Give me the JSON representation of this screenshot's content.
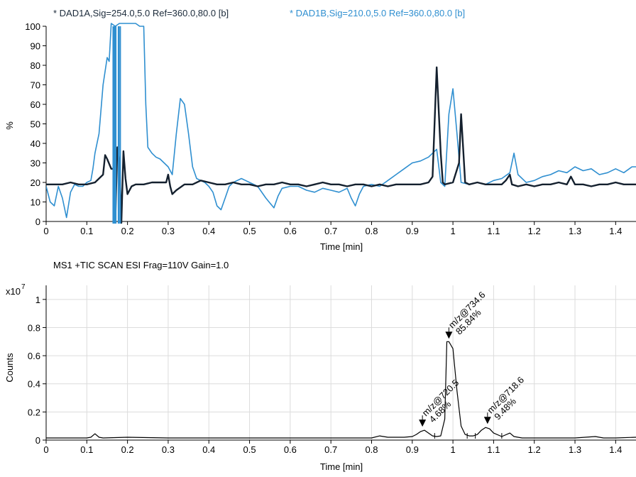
{
  "chart_data": [
    {
      "type": "line",
      "header": [
        {
          "text": "* DAD1A,Sig=254.0,5.0  Ref=360.0,80.0 [b]",
          "color": "#1b2a3a"
        },
        {
          "text": "* DAD1B,Sig=210.0,5.0  Ref=360.0,80.0 [b]",
          "color": "#2f8fd0"
        }
      ],
      "xlabel": "Time [min]",
      "ylabel": "%",
      "xlim": [
        0,
        1.45
      ],
      "ylim": [
        0,
        100
      ],
      "x_ticks": [
        0,
        0.1,
        0.2,
        0.3,
        0.4,
        0.5,
        0.6,
        0.7,
        0.8,
        0.9,
        1,
        1.1,
        1.2,
        1.3,
        1.4
      ],
      "x_tick_labels": [
        "0",
        "0.1",
        "0.2",
        "0.3",
        "0.4",
        "0.5",
        "0.6",
        "0.7",
        "0.8",
        "0.9",
        "1",
        "1.1",
        "1.2",
        "1.3",
        "1.4"
      ],
      "y_ticks": [
        0,
        10,
        20,
        30,
        40,
        50,
        60,
        70,
        80,
        90,
        100
      ],
      "y_tick_labels": [
        "0",
        "10",
        "20",
        "30",
        "40",
        "50",
        "60",
        "70",
        "80",
        "90",
        "100"
      ],
      "grid": false,
      "series": [
        {
          "color": "#2f8fd0",
          "points": [
            [
              0,
              18
            ],
            [
              0.01,
              10
            ],
            [
              0.02,
              8
            ],
            [
              0.03,
              18
            ],
            [
              0.04,
              12
            ],
            [
              0.05,
              2
            ],
            [
              0.06,
              15
            ],
            [
              0.07,
              19
            ],
            [
              0.08,
              18
            ],
            [
              0.09,
              18
            ],
            [
              0.1,
              20
            ],
            [
              0.11,
              21
            ],
            [
              0.115,
              27
            ],
            [
              0.12,
              35
            ],
            [
              0.13,
              45
            ],
            [
              0.14,
              70
            ],
            [
              0.15,
              84
            ],
            [
              0.155,
              82
            ],
            [
              0.16,
              105
            ],
            [
              0.17,
              100
            ],
            [
              0.18,
              105
            ],
            [
              0.19,
              105
            ],
            [
              0.2,
              105
            ],
            [
              0.21,
              105
            ],
            [
              0.22,
              105
            ],
            [
              0.23,
              100
            ],
            [
              0.24,
              100
            ],
            [
              0.245,
              60
            ],
            [
              0.25,
              38
            ],
            [
              0.26,
              35
            ],
            [
              0.27,
              33
            ],
            [
              0.28,
              32
            ],
            [
              0.29,
              30
            ],
            [
              0.3,
              28
            ],
            [
              0.31,
              24
            ],
            [
              0.32,
              45
            ],
            [
              0.33,
              63
            ],
            [
              0.34,
              60
            ],
            [
              0.35,
              45
            ],
            [
              0.36,
              28
            ],
            [
              0.37,
              22
            ],
            [
              0.38,
              21
            ],
            [
              0.39,
              20
            ],
            [
              0.4,
              18
            ],
            [
              0.41,
              15
            ],
            [
              0.42,
              8
            ],
            [
              0.43,
              6
            ],
            [
              0.44,
              12
            ],
            [
              0.45,
              18
            ],
            [
              0.46,
              20
            ],
            [
              0.48,
              22
            ],
            [
              0.5,
              20
            ],
            [
              0.52,
              18
            ],
            [
              0.54,
              12
            ],
            [
              0.56,
              7
            ],
            [
              0.57,
              13
            ],
            [
              0.58,
              17
            ],
            [
              0.6,
              18
            ],
            [
              0.62,
              18
            ],
            [
              0.64,
              16
            ],
            [
              0.66,
              15
            ],
            [
              0.68,
              17
            ],
            [
              0.7,
              16
            ],
            [
              0.72,
              15
            ],
            [
              0.74,
              17
            ],
            [
              0.75,
              12
            ],
            [
              0.76,
              8
            ],
            [
              0.77,
              14
            ],
            [
              0.78,
              18
            ],
            [
              0.8,
              19
            ],
            [
              0.82,
              18
            ],
            [
              0.84,
              21
            ],
            [
              0.86,
              24
            ],
            [
              0.88,
              27
            ],
            [
              0.9,
              30
            ],
            [
              0.92,
              31
            ],
            [
              0.94,
              33
            ],
            [
              0.96,
              37
            ],
            [
              0.97,
              20
            ],
            [
              0.98,
              18
            ],
            [
              0.99,
              55
            ],
            [
              1.0,
              68
            ],
            [
              1.01,
              45
            ],
            [
              1.02,
              20
            ],
            [
              1.04,
              19
            ],
            [
              1.06,
              20
            ],
            [
              1.08,
              19
            ],
            [
              1.1,
              21
            ],
            [
              1.12,
              22
            ],
            [
              1.14,
              25
            ],
            [
              1.15,
              35
            ],
            [
              1.16,
              24
            ],
            [
              1.18,
              20
            ],
            [
              1.2,
              21
            ],
            [
              1.22,
              23
            ],
            [
              1.24,
              24
            ],
            [
              1.26,
              26
            ],
            [
              1.28,
              25
            ],
            [
              1.3,
              28
            ],
            [
              1.32,
              26
            ],
            [
              1.34,
              27
            ],
            [
              1.36,
              24
            ],
            [
              1.38,
              25
            ],
            [
              1.4,
              27
            ],
            [
              1.42,
              25
            ],
            [
              1.44,
              28
            ],
            [
              1.45,
              28
            ]
          ]
        },
        {
          "color": "#14202e",
          "points": [
            [
              0,
              19
            ],
            [
              0.02,
              19
            ],
            [
              0.04,
              19
            ],
            [
              0.06,
              20
            ],
            [
              0.08,
              19
            ],
            [
              0.1,
              19
            ],
            [
              0.12,
              20
            ],
            [
              0.14,
              24
            ],
            [
              0.145,
              34
            ],
            [
              0.15,
              32
            ],
            [
              0.16,
              27
            ],
            [
              0.165,
              27
            ],
            [
              0.17,
              0
            ],
            [
              0.175,
              38
            ],
            [
              0.18,
              30
            ],
            [
              0.185,
              -2
            ],
            [
              0.19,
              36
            ],
            [
              0.195,
              22
            ],
            [
              0.2,
              14
            ],
            [
              0.21,
              18
            ],
            [
              0.22,
              19
            ],
            [
              0.24,
              19
            ],
            [
              0.26,
              20
            ],
            [
              0.28,
              20
            ],
            [
              0.295,
              20
            ],
            [
              0.3,
              24
            ],
            [
              0.305,
              18
            ],
            [
              0.31,
              14
            ],
            [
              0.32,
              16
            ],
            [
              0.34,
              19
            ],
            [
              0.36,
              19
            ],
            [
              0.38,
              21
            ],
            [
              0.4,
              20
            ],
            [
              0.42,
              19
            ],
            [
              0.44,
              19
            ],
            [
              0.46,
              20
            ],
            [
              0.48,
              19
            ],
            [
              0.5,
              19
            ],
            [
              0.52,
              18
            ],
            [
              0.54,
              19
            ],
            [
              0.56,
              19
            ],
            [
              0.58,
              20
            ],
            [
              0.6,
              19
            ],
            [
              0.62,
              19
            ],
            [
              0.64,
              18
            ],
            [
              0.66,
              19
            ],
            [
              0.68,
              20
            ],
            [
              0.7,
              19
            ],
            [
              0.72,
              19
            ],
            [
              0.74,
              18
            ],
            [
              0.76,
              19
            ],
            [
              0.78,
              19
            ],
            [
              0.8,
              18
            ],
            [
              0.82,
              19
            ],
            [
              0.84,
              18
            ],
            [
              0.86,
              19
            ],
            [
              0.88,
              19
            ],
            [
              0.9,
              19
            ],
            [
              0.92,
              19
            ],
            [
              0.94,
              20
            ],
            [
              0.95,
              23
            ],
            [
              0.96,
              79
            ],
            [
              0.97,
              35
            ],
            [
              0.975,
              20
            ],
            [
              0.98,
              19
            ],
            [
              1.0,
              20
            ],
            [
              1.015,
              30
            ],
            [
              1.02,
              55
            ],
            [
              1.025,
              38
            ],
            [
              1.03,
              20
            ],
            [
              1.04,
              19
            ],
            [
              1.06,
              20
            ],
            [
              1.08,
              19
            ],
            [
              1.1,
              19
            ],
            [
              1.12,
              19
            ],
            [
              1.13,
              21
            ],
            [
              1.14,
              24
            ],
            [
              1.145,
              19
            ],
            [
              1.16,
              18
            ],
            [
              1.18,
              19
            ],
            [
              1.2,
              18
            ],
            [
              1.22,
              19
            ],
            [
              1.24,
              19
            ],
            [
              1.26,
              20
            ],
            [
              1.28,
              19
            ],
            [
              1.29,
              23
            ],
            [
              1.3,
              19
            ],
            [
              1.32,
              19
            ],
            [
              1.34,
              18
            ],
            [
              1.36,
              19
            ],
            [
              1.38,
              19
            ],
            [
              1.4,
              20
            ],
            [
              1.42,
              19
            ],
            [
              1.44,
              19
            ],
            [
              1.45,
              19
            ]
          ]
        }
      ],
      "spikes_x": [
        0.165,
        0.168,
        0.171,
        0.178,
        0.182
      ]
    },
    {
      "type": "line",
      "title": "MS1 +TIC SCAN ESI Frag=110V Gain=1.0",
      "xlabel": "Time [min]",
      "ylabel": "Counts",
      "y_multiplier_base": "x10",
      "y_multiplier_exp": "7",
      "xlim": [
        0,
        1.45
      ],
      "ylim": [
        0,
        1.1
      ],
      "x_ticks": [
        0,
        0.1,
        0.2,
        0.3,
        0.4,
        0.5,
        0.6,
        0.7,
        0.8,
        0.9,
        1,
        1.1,
        1.2,
        1.3,
        1.4
      ],
      "x_tick_labels": [
        "0",
        "0.1",
        "0.2",
        "0.3",
        "0.4",
        "0.5",
        "0.6",
        "0.7",
        "0.8",
        "0.9",
        "1",
        "1.1",
        "1.2",
        "1.3",
        "1.4"
      ],
      "y_ticks": [
        0,
        0.2,
        0.4,
        0.6,
        0.8,
        1
      ],
      "y_tick_labels": [
        "0",
        "0.2",
        "0.4",
        "0.6",
        "0.8",
        "1"
      ],
      "grid": true,
      "series": [
        {
          "color": "#000000",
          "points": [
            [
              0,
              0.015
            ],
            [
              0.1,
              0.015
            ],
            [
              0.11,
              0.02
            ],
            [
              0.12,
              0.045
            ],
            [
              0.13,
              0.02
            ],
            [
              0.14,
              0.015
            ],
            [
              0.2,
              0.02
            ],
            [
              0.3,
              0.015
            ],
            [
              0.4,
              0.015
            ],
            [
              0.5,
              0.015
            ],
            [
              0.6,
              0.015
            ],
            [
              0.7,
              0.015
            ],
            [
              0.8,
              0.015
            ],
            [
              0.82,
              0.03
            ],
            [
              0.84,
              0.02
            ],
            [
              0.88,
              0.02
            ],
            [
              0.9,
              0.025
            ],
            [
              0.91,
              0.04
            ],
            [
              0.92,
              0.06
            ],
            [
              0.93,
              0.07
            ],
            [
              0.94,
              0.05
            ],
            [
              0.95,
              0.03
            ],
            [
              0.96,
              0.025
            ],
            [
              0.97,
              0.03
            ],
            [
              0.98,
              0.15
            ],
            [
              0.985,
              0.7
            ],
            [
              0.99,
              0.7
            ],
            [
              1.0,
              0.65
            ],
            [
              1.01,
              0.35
            ],
            [
              1.02,
              0.1
            ],
            [
              1.03,
              0.04
            ],
            [
              1.04,
              0.03
            ],
            [
              1.05,
              0.03
            ],
            [
              1.06,
              0.04
            ],
            [
              1.07,
              0.07
            ],
            [
              1.08,
              0.09
            ],
            [
              1.09,
              0.08
            ],
            [
              1.1,
              0.05
            ],
            [
              1.12,
              0.025
            ],
            [
              1.14,
              0.05
            ],
            [
              1.15,
              0.025
            ],
            [
              1.17,
              0.015
            ],
            [
              1.2,
              0.015
            ],
            [
              1.3,
              0.015
            ],
            [
              1.35,
              0.025
            ],
            [
              1.37,
              0.015
            ],
            [
              1.4,
              0.015
            ],
            [
              1.45,
              0.02
            ]
          ]
        }
      ],
      "integration_ticks_x": [
        0.955,
        1.035,
        1.055,
        1.12
      ],
      "annotations": [
        {
          "x": 0.925,
          "y": 0.095,
          "lines": [
            "m/z@720.5",
            "4.68%"
          ]
        },
        {
          "x": 0.99,
          "y": 0.72,
          "lines": [
            "m/z@734.6",
            "85.84%"
          ]
        },
        {
          "x": 1.085,
          "y": 0.115,
          "lines": [
            "m/z@718.6",
            "9.48%"
          ]
        }
      ]
    }
  ]
}
